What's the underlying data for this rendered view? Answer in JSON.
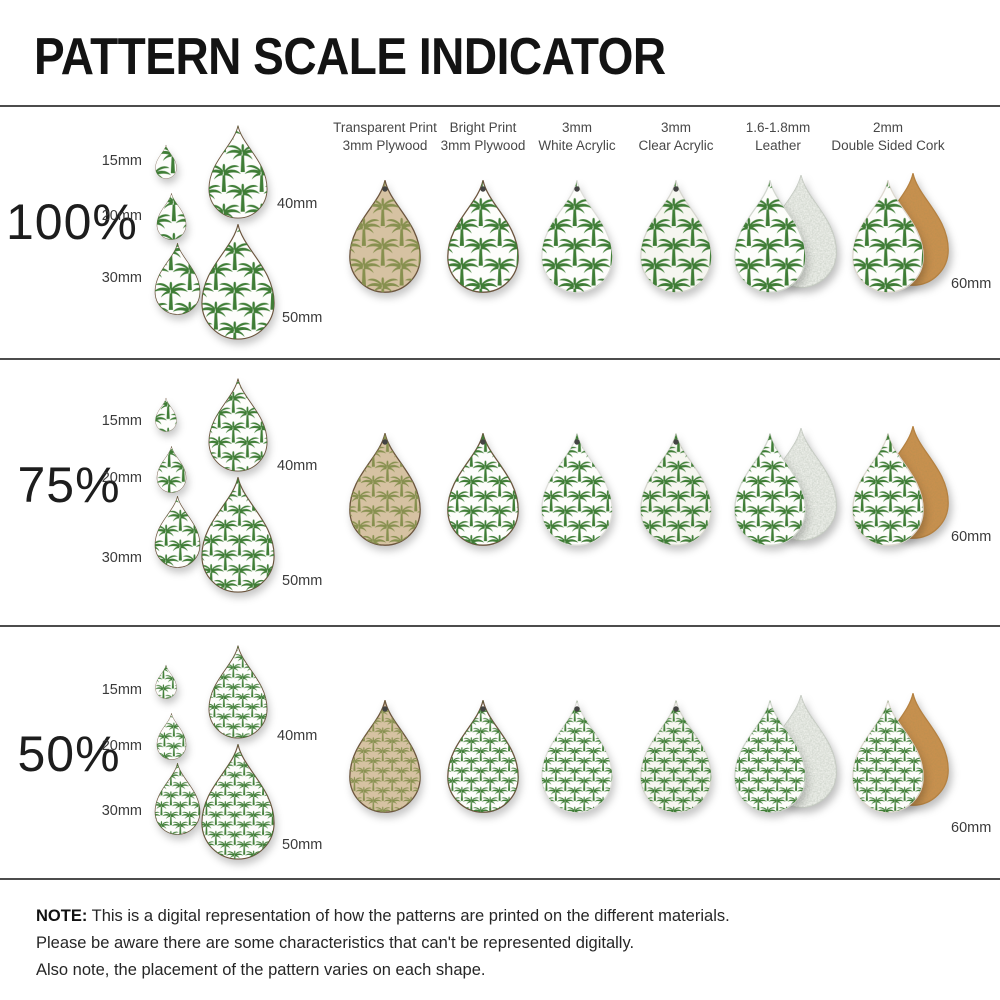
{
  "title": "PATTERN SCALE INDICATOR",
  "rows": [
    {
      "percent": "100%",
      "pattern_scale": 1
    },
    {
      "percent": "75%",
      "pattern_scale": 0.75
    },
    {
      "percent": "50%",
      "pattern_scale": 0.5
    }
  ],
  "size_labels": [
    "15mm",
    "20mm",
    "30mm",
    "40mm",
    "50mm"
  ],
  "large_size_label": "60mm",
  "materials": [
    {
      "key": "plywood-transparent",
      "line1": "Transparent Print",
      "line2": "3mm Plywood"
    },
    {
      "key": "plywood-bright",
      "line1": "Bright Print",
      "line2": "3mm Plywood"
    },
    {
      "key": "acrylic-white",
      "line1": "3mm",
      "line2": "White Acrylic"
    },
    {
      "key": "acrylic-clear",
      "line1": "3mm",
      "line2": "Clear Acrylic"
    },
    {
      "key": "leather",
      "line1": "1.6-1.8mm",
      "line2": "Leather"
    },
    {
      "key": "cork",
      "line1": "2mm",
      "line2": "Double Sided Cork"
    }
  ],
  "note": {
    "label": "NOTE:",
    "line1": "This is a digital representation of how the patterns are printed on the different materials.",
    "line2": "Please be aware there are some characteristics that can't be represented digitally.",
    "line3": "Also note, the placement of the pattern varies on each shape."
  },
  "colors": {
    "pattern_green": "#3f7d36",
    "pattern_olive": "#87904f",
    "plywood_tan": "#d6c2a2",
    "white": "#fdfdfb",
    "clear_acrylic": "#f6f6f0",
    "suede_gray": "#d3d8d0",
    "cork_orange": "#c9904e",
    "plywood_edge": "#6b543d",
    "divider": "#4c4c4c"
  }
}
